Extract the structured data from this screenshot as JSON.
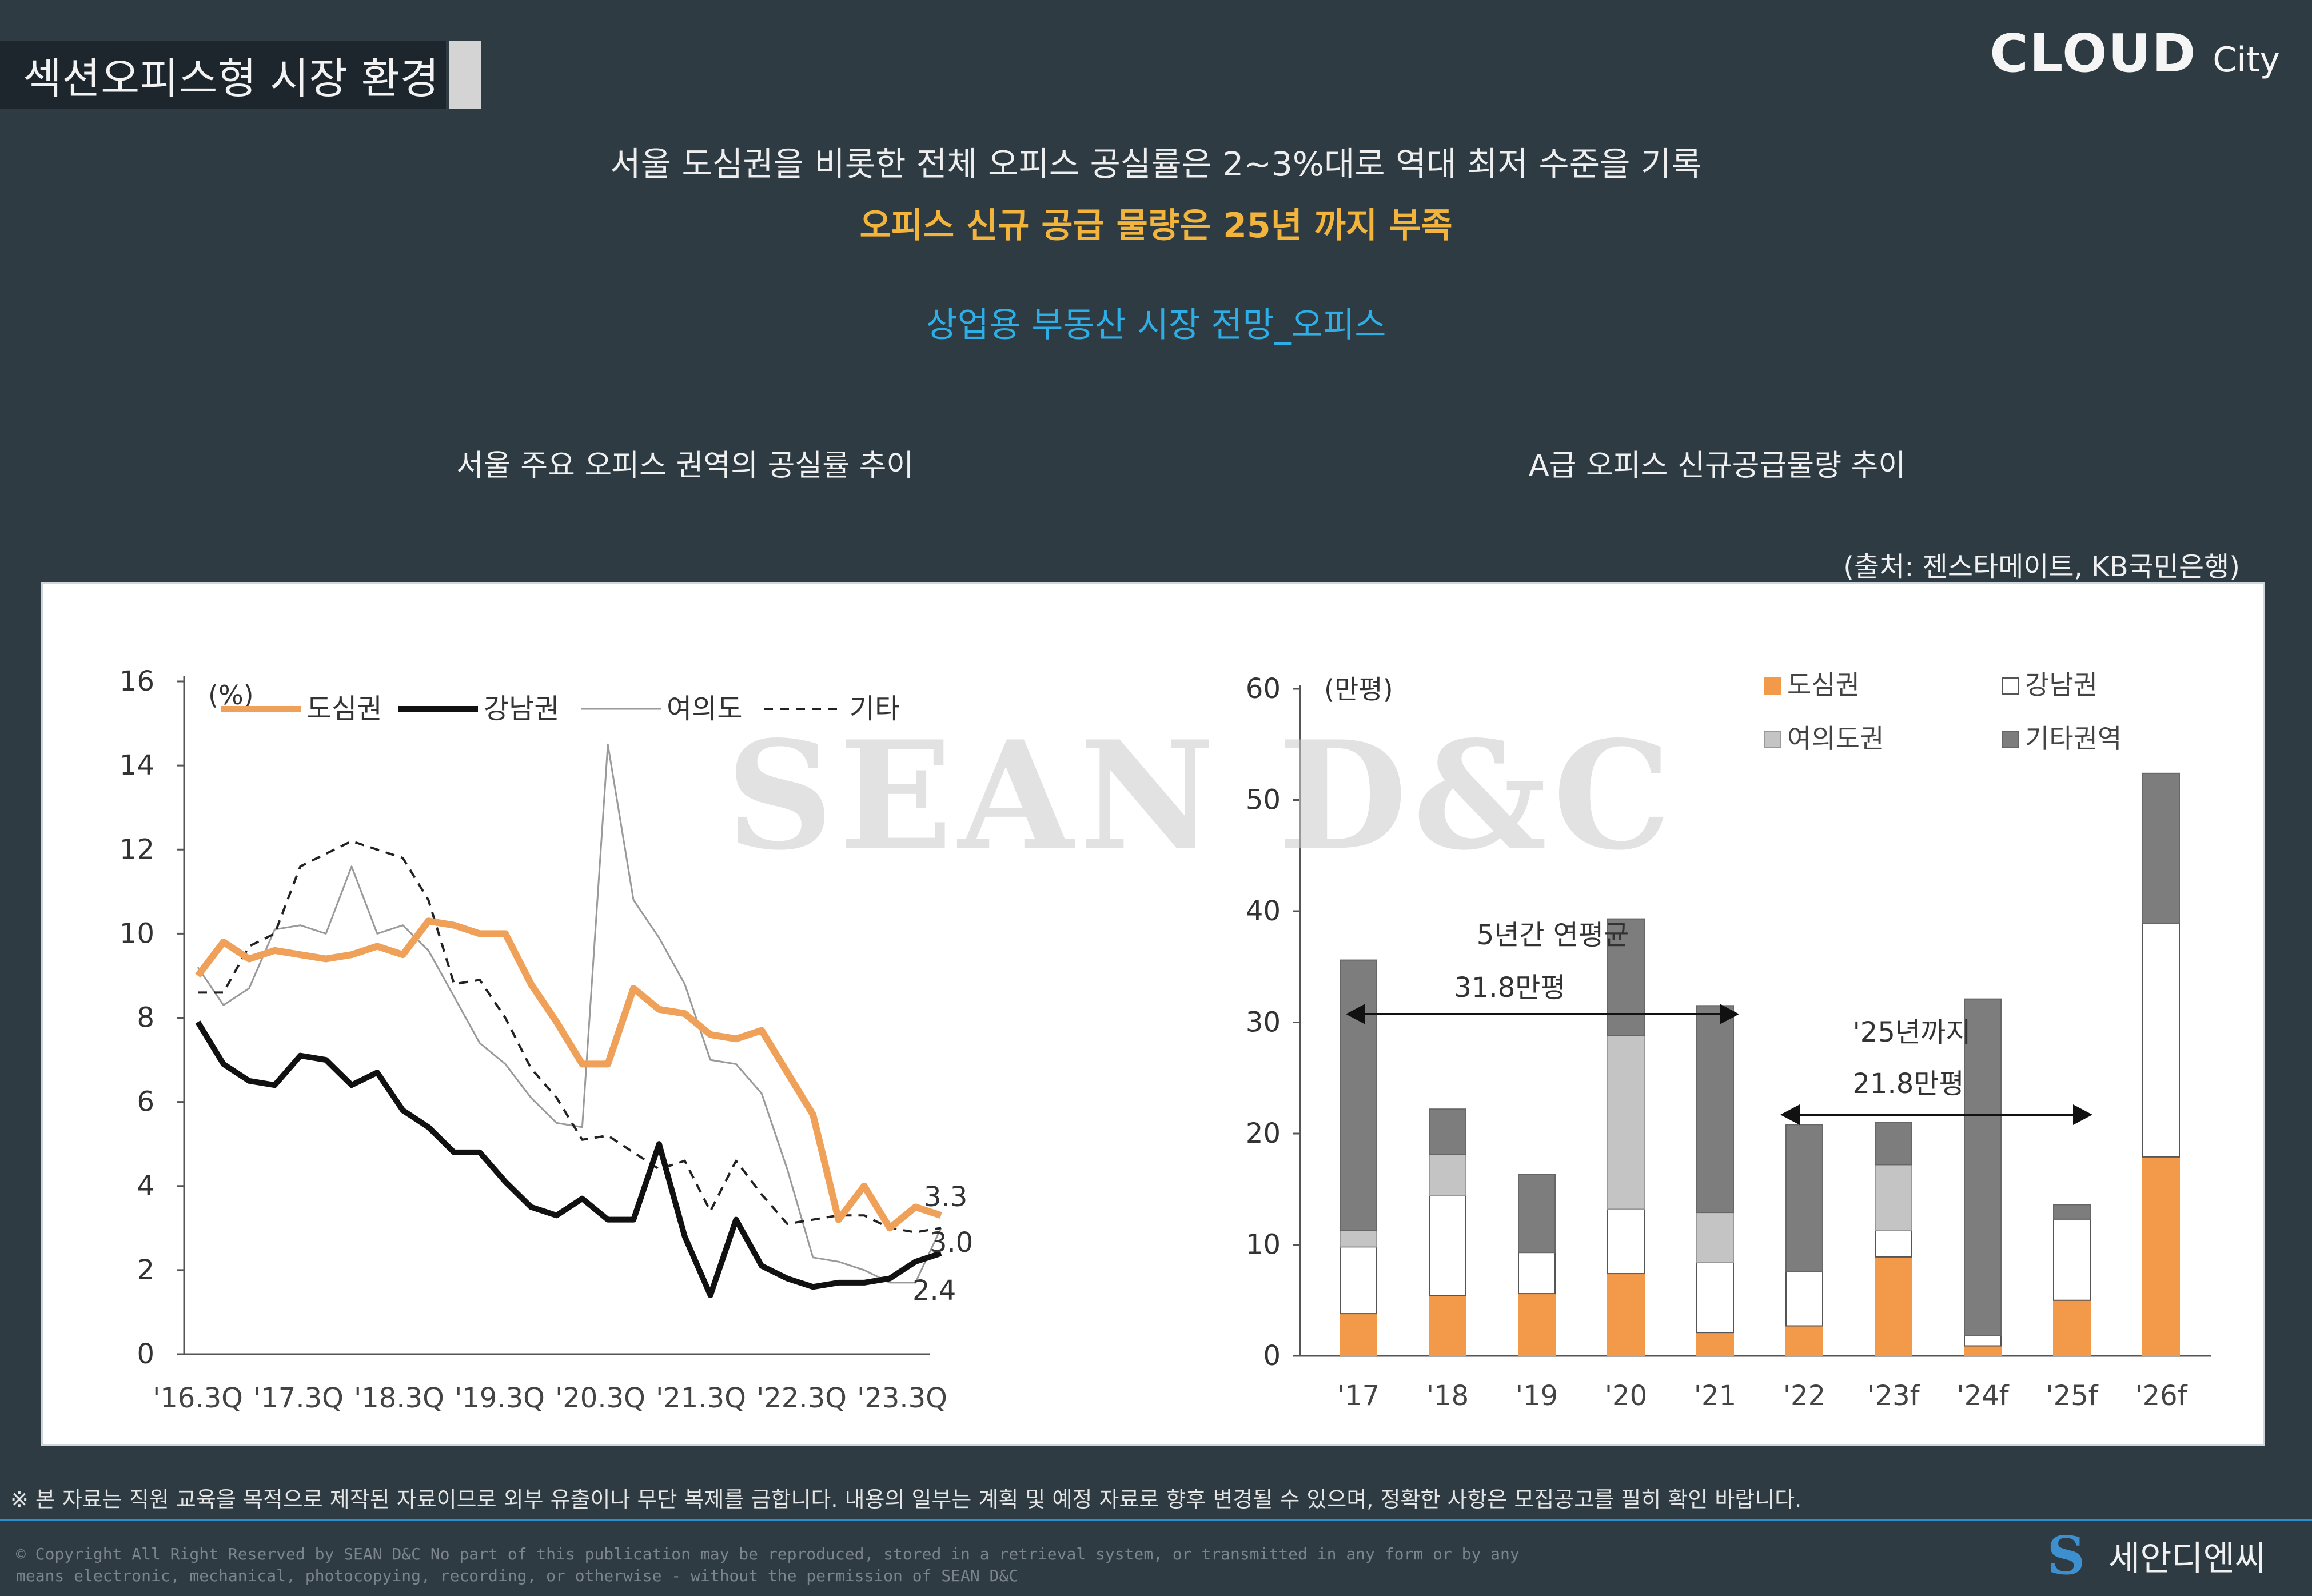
{
  "header": {
    "section_title": "섹션오피스형 시장 환경",
    "brand_main": "CLOUD",
    "brand_sub": "City"
  },
  "headline": {
    "line1": "서울 도심권을 비롯한 전체 오피스 공실률은 2~3%대로 역대 최저 수준을 기록",
    "line2": "오피스 신규 공급 물량은 25년 까지 부족",
    "line3": "상업용 부동산 시장 전망_오피스"
  },
  "left_title": "서울 주요 오피스 권역의 공실률 추이",
  "right_title": "A급 오피스 신규공급물량 추이",
  "source": "(출처: 젠스타메이트, KB국민은행)",
  "watermark": "SEAN D&C",
  "colors": {
    "orange": "#f0a159",
    "black": "#111111",
    "gray": "#9a9a9a",
    "dark_gray": "#7d7d7d",
    "light_gray": "#c4c4c4",
    "bar_orange": "#f39a4a"
  },
  "chart_data": [
    {
      "type": "line",
      "title": "서울 주요 오피스 권역의 공실률 추이",
      "unit": "(%)",
      "ylim": [
        0,
        16
      ],
      "yticks": [
        0,
        2,
        4,
        6,
        8,
        10,
        12,
        14,
        16
      ],
      "xlabels": [
        "'16.3Q",
        "'17.3Q",
        "'18.3Q",
        "'19.3Q",
        "'20.3Q",
        "'21.3Q",
        "'22.3Q",
        "'23.3Q"
      ],
      "legend": [
        "도심권",
        "강남권",
        "여의도",
        "기타"
      ],
      "series": [
        {
          "name": "도심권",
          "values": [
            9.0,
            9.8,
            9.4,
            9.6,
            9.5,
            9.4,
            9.5,
            9.7,
            9.5,
            10.3,
            10.2,
            10.0,
            10.0,
            8.8,
            7.9,
            6.9,
            6.9,
            8.7,
            8.2,
            8.1,
            7.6,
            7.5,
            7.7,
            6.7,
            5.7,
            3.2,
            4.0,
            3.0,
            3.5,
            3.3
          ]
        },
        {
          "name": "강남권",
          "values": [
            7.9,
            6.9,
            6.5,
            6.4,
            7.1,
            7.0,
            6.4,
            6.7,
            5.8,
            5.4,
            4.8,
            4.8,
            4.1,
            3.5,
            3.3,
            3.7,
            3.2,
            3.2,
            5.0,
            2.8,
            1.4,
            3.2,
            2.1,
            1.8,
            1.6,
            1.7,
            1.7,
            1.8,
            2.2,
            2.4
          ]
        },
        {
          "name": "여의도",
          "values": [
            9.2,
            8.3,
            8.7,
            10.1,
            10.2,
            10.0,
            11.6,
            10.0,
            10.2,
            9.6,
            8.5,
            7.4,
            6.9,
            6.1,
            5.5,
            5.4,
            14.5,
            10.8,
            9.9,
            8.8,
            7.0,
            6.9,
            6.2,
            4.4,
            2.3,
            2.2,
            2.0,
            1.7,
            1.7,
            3.0
          ]
        },
        {
          "name": "기타",
          "values": [
            8.6,
            8.6,
            9.7,
            10.0,
            11.6,
            11.9,
            12.2,
            12.0,
            11.8,
            10.8,
            8.8,
            8.9,
            8.0,
            6.8,
            6.1,
            5.1,
            5.2,
            4.8,
            4.4,
            4.6,
            3.4,
            4.6,
            3.8,
            3.1,
            3.2,
            3.3,
            3.3,
            3.0,
            2.9,
            3.0
          ]
        }
      ],
      "end_labels": [
        "3.3",
        "3.0",
        "2.4"
      ]
    },
    {
      "type": "bar",
      "title": "A급 오피스 신규공급물량 추이",
      "unit": "(만평)",
      "ylim": [
        0,
        60
      ],
      "yticks": [
        0,
        10,
        20,
        30,
        40,
        50,
        60
      ],
      "categories": [
        "'17",
        "'18",
        "'19",
        "'20",
        "'21",
        "'22",
        "'23f",
        "'24f",
        "'25f",
        "'26f"
      ],
      "series": [
        {
          "name": "도심권",
          "values": [
            3.8,
            5.4,
            5.6,
            7.4,
            2.1,
            2.7,
            8.9,
            0.9,
            5.0,
            17.9
          ]
        },
        {
          "name": "강남권",
          "values": [
            6.0,
            9.0,
            3.7,
            5.8,
            6.3,
            4.9,
            2.4,
            0.9,
            7.3,
            21.0
          ]
        },
        {
          "name": "여의도권",
          "values": [
            1.5,
            3.7,
            0,
            15.6,
            4.5,
            0,
            5.9,
            0,
            0,
            0
          ]
        },
        {
          "name": "기타권역",
          "values": [
            24.3,
            4.1,
            7.0,
            10.5,
            18.6,
            13.2,
            3.8,
            30.3,
            1.3,
            13.5
          ]
        }
      ],
      "annotation1": {
        "line1": "5년간 연평균",
        "line2": "31.8만평"
      },
      "annotation2": {
        "line1": "'25년까지",
        "line2": "21.8만평"
      }
    }
  ],
  "footer": {
    "disclaimer": "※ 본 자료는 직원 교육을 목적으로 제작된 자료이므로 외부 유출이나 무단 복제를 금합니다. 내용의 일부는 계획 및 예정 자료로 향후 변경될 수 있으며, 정확한 사항은 모집공고를 필히 확인 바랍니다.",
    "copyright_line1": "© Copyright All Right Reserved by SEAN D&C  No part of this publication may be reproduced, stored in a retrieval system, or transmitted in any form or by any",
    "copyright_line2": "means electronic, mechanical, photocopying, recording, or otherwise - without the permission of SEAN D&C",
    "logo_mark": "S",
    "logo_name": "세안디엔씨"
  }
}
